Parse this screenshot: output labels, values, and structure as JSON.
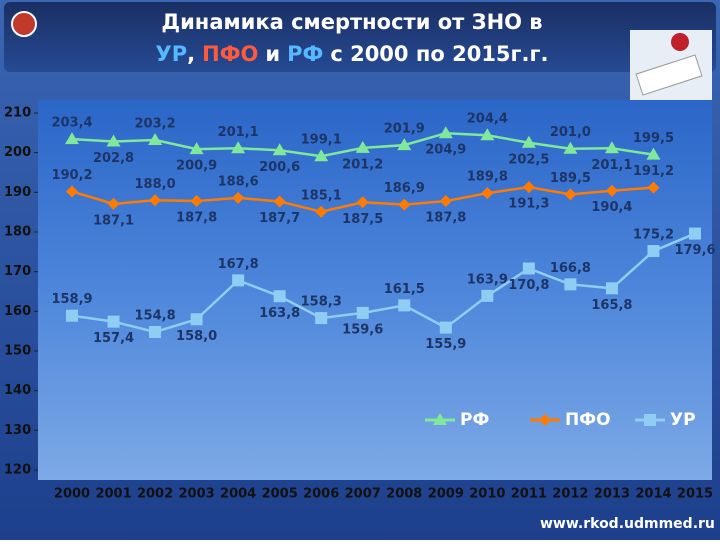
{
  "header": {
    "title": {
      "line1": "Динамика смертности от ЗНО в",
      "line2": [
        {
          "text": "УР",
          "color": "#56b8ff"
        },
        {
          "text": ",",
          "color": "#ffffff"
        },
        {
          "text": "ПФО",
          "color": "#ff5a3c"
        },
        {
          "text": "и",
          "color": "#ffffff"
        },
        {
          "text": "РФ",
          "color": "#56b8ff"
        },
        {
          "text": "с 2000 по 2015г.г.",
          "color": "#ffffff"
        }
      ]
    }
  },
  "chart_data": {
    "type": "line",
    "categories": [
      "2000",
      "2001",
      "2002",
      "2003",
      "2004",
      "2005",
      "2006",
      "2007",
      "2008",
      "2009",
      "2010",
      "2011",
      "2012",
      "2013",
      "2014",
      "2015"
    ],
    "ylim": [
      120,
      210
    ],
    "yticks": [
      120,
      130,
      140,
      150,
      160,
      170,
      180,
      190,
      200,
      210
    ],
    "legend": "lower right",
    "series": [
      {
        "name": "РФ",
        "color": "#7fe89a",
        "marker": "triangle",
        "values": [
          203.4,
          202.8,
          203.2,
          200.9,
          201.1,
          200.6,
          199.1,
          201.2,
          201.9,
          204.9,
          204.4,
          202.5,
          201.0,
          201.1,
          199.5,
          null
        ],
        "value_labels": [
          "203,4",
          "202,8",
          "203,2",
          "200,9",
          "201,1",
          "200,6",
          "199,1",
          "201,2",
          "201,9",
          "204,9",
          "204,4",
          "202,5",
          "201,0",
          "201,1",
          "199,5",
          null
        ]
      },
      {
        "name": "ПФО",
        "color": "#ff7a00",
        "marker": "diamond",
        "values": [
          190.2,
          187.1,
          188.0,
          187.8,
          188.6,
          187.7,
          185.1,
          187.5,
          186.9,
          187.8,
          189.8,
          191.3,
          189.5,
          190.4,
          191.2,
          null
        ],
        "value_labels": [
          "190,2",
          "187,1",
          "188,0",
          "187,8",
          "188,6",
          "187,7",
          "185,1",
          "187,5",
          "186,9",
          "187,8",
          "189,8",
          "191,3",
          "189,5",
          "190,4",
          "191,2",
          null
        ]
      },
      {
        "name": "УР",
        "color": "#8fcdf5",
        "marker": "square",
        "values": [
          158.9,
          157.4,
          154.8,
          158.0,
          167.8,
          163.8,
          158.3,
          159.6,
          161.5,
          155.9,
          163.9,
          170.8,
          166.8,
          165.8,
          175.2,
          179.6
        ],
        "value_labels": [
          "158,9",
          "157,4",
          "154,8",
          "158,0",
          "167,8",
          "163,8",
          "158,3",
          "159,6",
          "161,5",
          "155,9",
          "163,9",
          "170,8",
          "166,8",
          "165,8",
          "175,2",
          "179,6"
        ]
      }
    ]
  },
  "footer": {
    "url": "www.rkod.udmmed.ru"
  }
}
